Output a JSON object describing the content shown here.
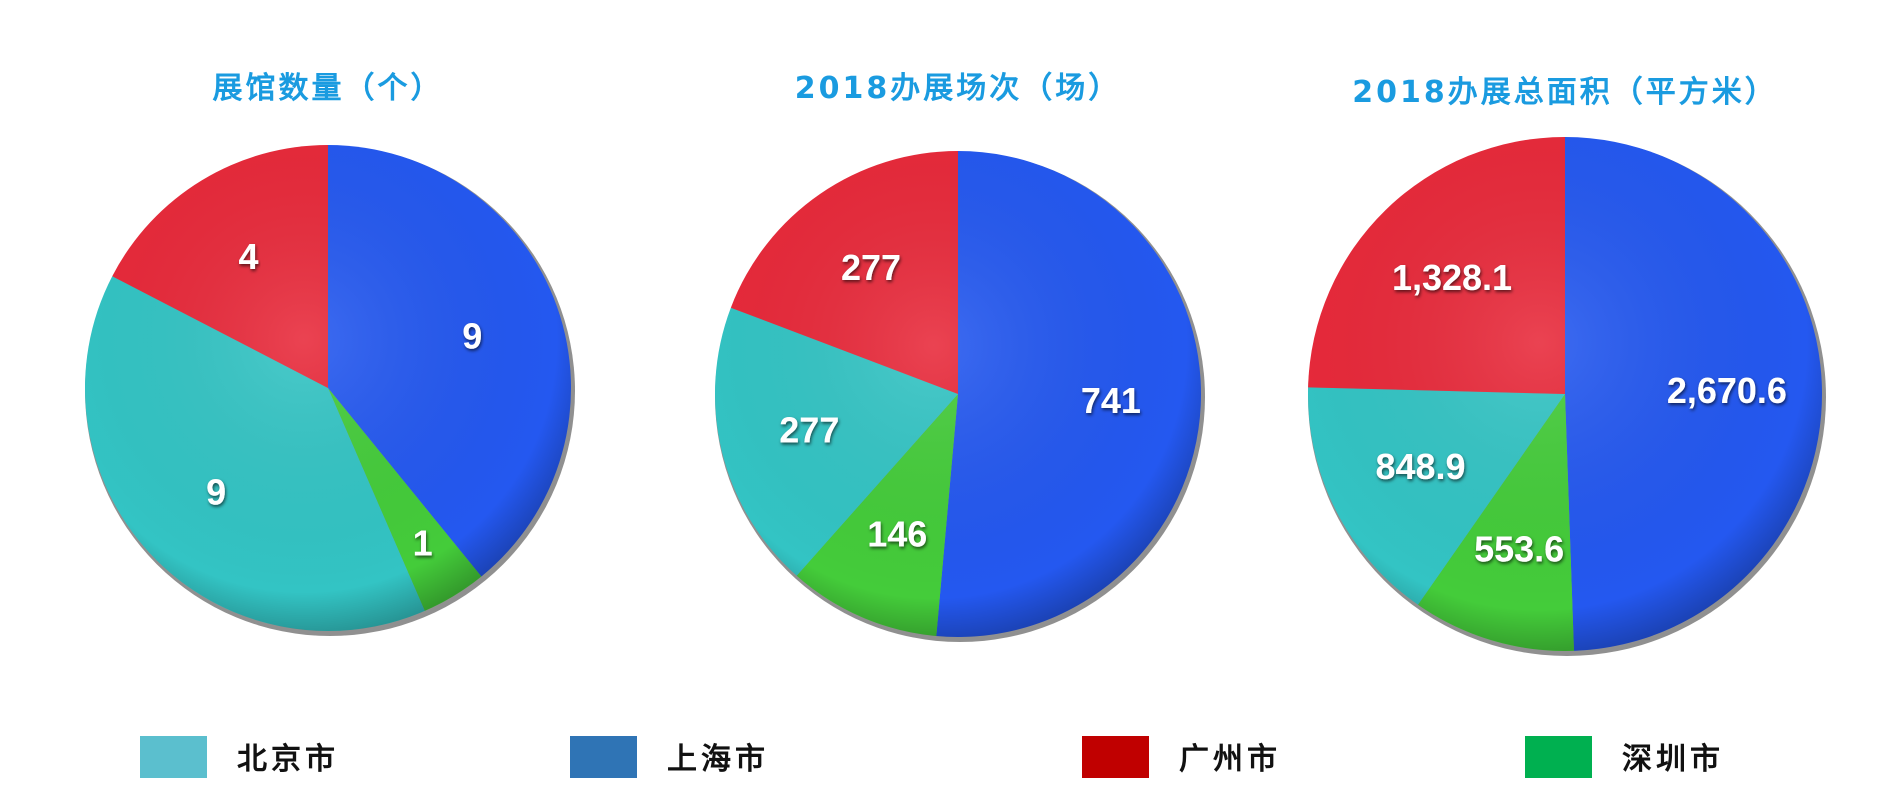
{
  "chart_data": [
    {
      "type": "pie",
      "title": "展馆数量（个）",
      "categories": [
        "上海市",
        "深圳市",
        "北京市",
        "广州市"
      ],
      "values": [
        9,
        1,
        9,
        4
      ],
      "labels": [
        "9",
        "1",
        "9",
        "4"
      ]
    },
    {
      "type": "pie",
      "title": "2018办展场次（场）",
      "categories": [
        "上海市",
        "深圳市",
        "北京市",
        "广州市"
      ],
      "values": [
        741,
        146,
        277,
        277
      ],
      "labels": [
        "741",
        "146",
        "277",
        "277"
      ]
    },
    {
      "type": "pie",
      "title": "2018办展总面积（平方米）",
      "categories": [
        "上海市",
        "深圳市",
        "北京市",
        "广州市"
      ],
      "values": [
        2670.6,
        553.6,
        848.9,
        1328.1
      ],
      "labels": [
        "2,670.6",
        "553.6",
        "848.9",
        "1,328.1"
      ]
    }
  ],
  "colors": {
    "北京市": "#33c4c4",
    "上海市": "#2458f0",
    "广州市": "#e8293a",
    "深圳市": "#44cc3a"
  },
  "legend": {
    "placement": "bottom",
    "items": [
      {
        "label": "北京市",
        "color": "#5bbfce"
      },
      {
        "label": "上海市",
        "color": "#2f74b5"
      },
      {
        "label": "广州市",
        "color": "#c00000"
      },
      {
        "label": "深圳市",
        "color": "#00b050"
      }
    ]
  }
}
